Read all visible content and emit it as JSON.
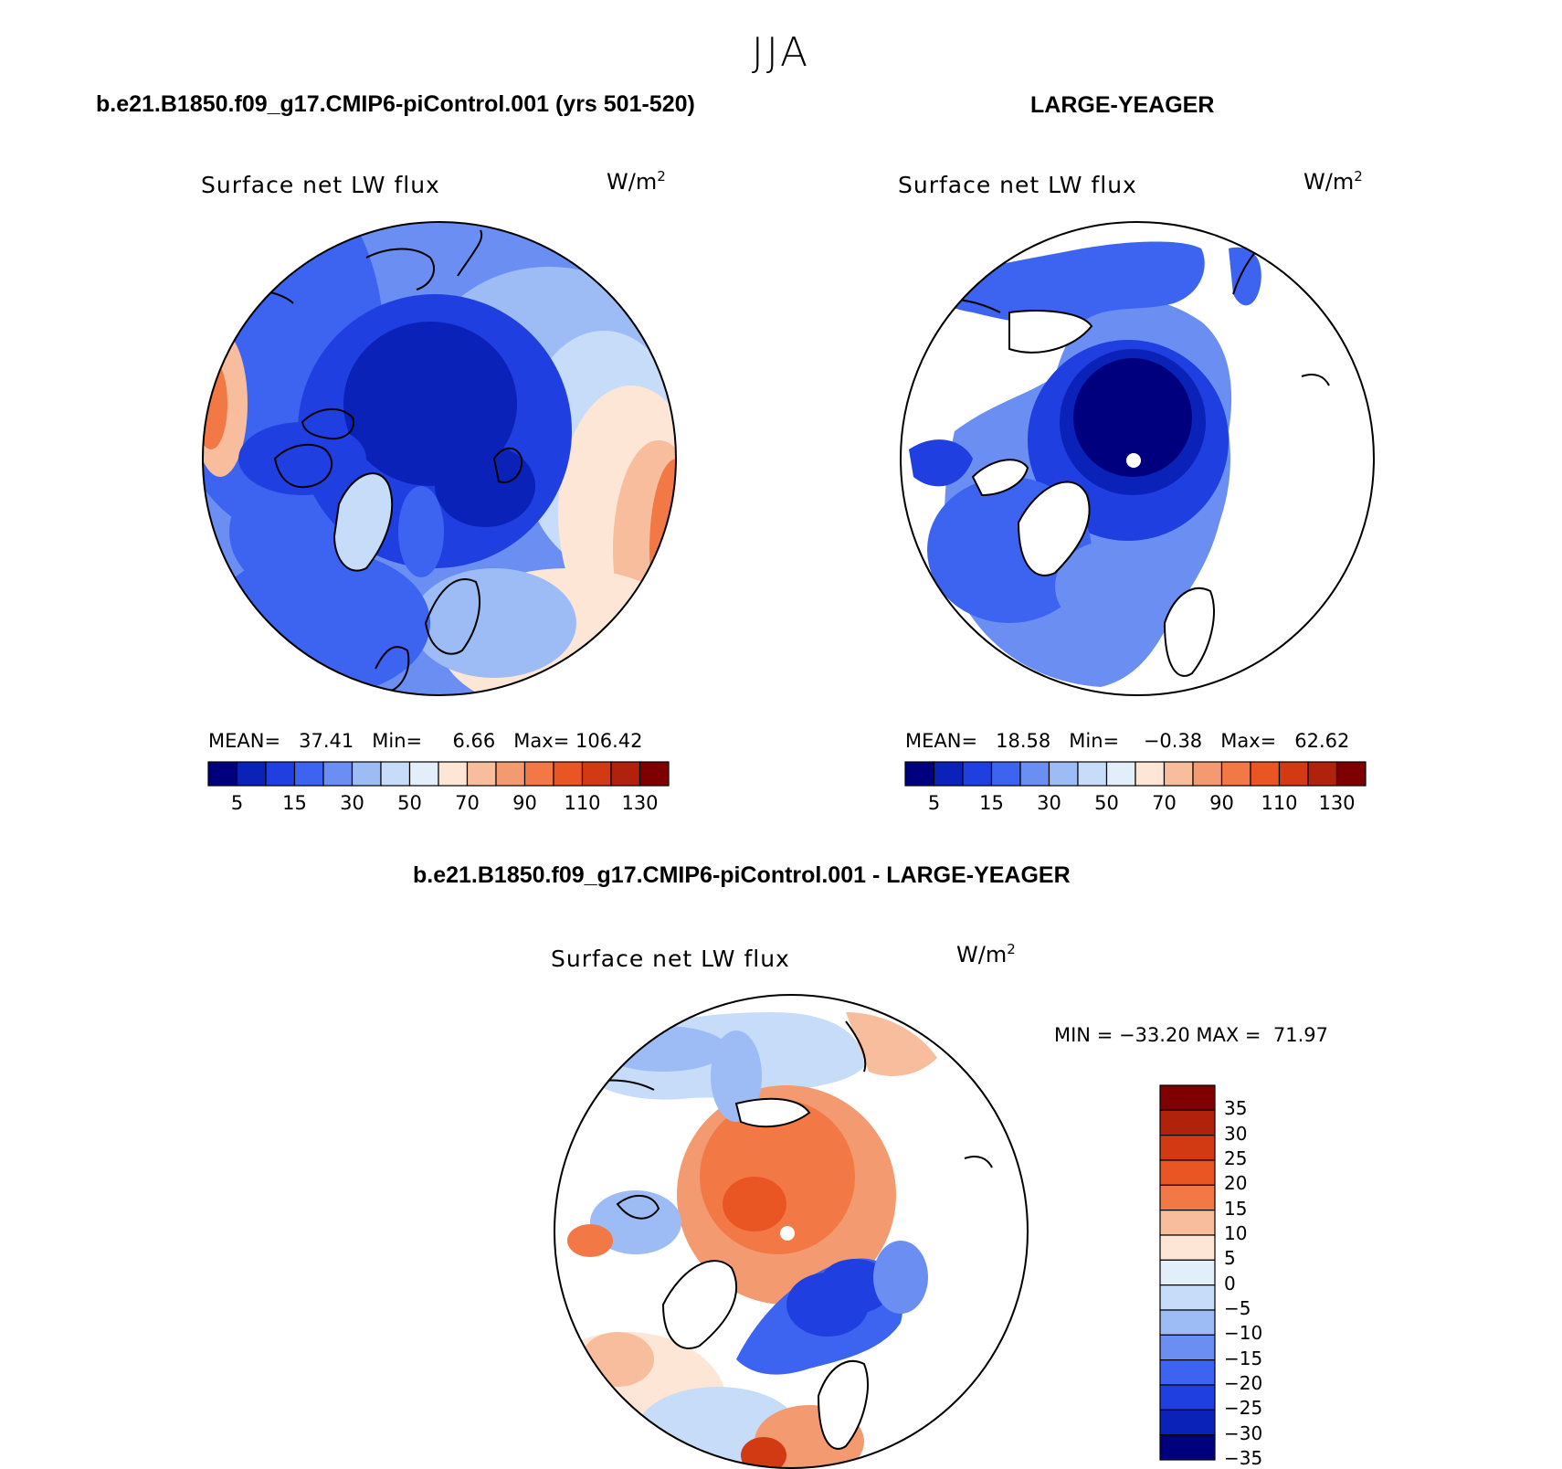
{
  "season": "JJA",
  "panels": {
    "model": {
      "title": "b.e21.B1850.f09_g17.CMIP6-piControl.001 (yrs 501-520)",
      "variable": "Surface net LW flux",
      "units": "W/m",
      "units_sup": "2",
      "stats": {
        "mean_label": "MEAN=",
        "mean": "37.41",
        "min_label": "Min=",
        "min": "6.66",
        "max_label": "Max=",
        "max": "106.42"
      }
    },
    "obs": {
      "title": "LARGE-YEAGER",
      "variable": "Surface net LW flux",
      "units": "W/m",
      "units_sup": "2",
      "stats": {
        "mean_label": "MEAN=",
        "mean": "18.58",
        "min_label": "Min=",
        "min": "−0.38",
        "max_label": "Max=",
        "max": "62.62"
      }
    },
    "diff": {
      "title": "b.e21.B1850.f09_g17.CMIP6-piControl.001 - LARGE-YEAGER",
      "variable": "Surface net LW flux",
      "units": "W/m",
      "units_sup": "2",
      "stats": {
        "min_label": "MIN =",
        "min": "−33.20",
        "max_label": "MAX =",
        "max": "71.97"
      }
    }
  },
  "colorbar_horizontal": {
    "colors": [
      "#00007f",
      "#0a22b8",
      "#1f3fe0",
      "#3d64f0",
      "#6a8ef2",
      "#9dbbf5",
      "#c6dcf8",
      "#e3eefb",
      "#fde6d6",
      "#f7bd9c",
      "#f49a70",
      "#f27845",
      "#ea5524",
      "#d23a14",
      "#b0220c",
      "#7f0000"
    ],
    "labels": [
      "5",
      "15",
      "30",
      "50",
      "70",
      "90",
      "110",
      "130"
    ]
  },
  "colorbar_vertical": {
    "colors": [
      "#7f0000",
      "#b0220c",
      "#d23a14",
      "#ea5524",
      "#f27845",
      "#f7bd9c",
      "#fde6d6",
      "#e3eefb",
      "#c6dcf8",
      "#9dbbf5",
      "#6a8ef2",
      "#3d64f0",
      "#1f3fe0",
      "#0a22b8",
      "#00007f"
    ],
    "labels": [
      "35",
      "30",
      "25",
      "20",
      "15",
      "10",
      "5",
      "0",
      "−5",
      "−10",
      "−15",
      "−20",
      "−25",
      "−30",
      "−35"
    ]
  }
}
